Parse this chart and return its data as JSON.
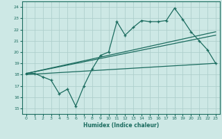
{
  "title": "",
  "xlabel": "Humidex (Indice chaleur)",
  "ylabel": "",
  "bg_color": "#cde8e5",
  "grid_color": "#aecfcc",
  "line_color": "#1a6b5e",
  "xlim": [
    -0.5,
    23.5
  ],
  "ylim": [
    14.5,
    24.5
  ],
  "xticks": [
    0,
    1,
    2,
    3,
    4,
    5,
    6,
    7,
    8,
    9,
    10,
    11,
    12,
    13,
    14,
    15,
    16,
    17,
    18,
    19,
    20,
    21,
    22,
    23
  ],
  "yticks": [
    15,
    16,
    17,
    18,
    19,
    20,
    21,
    22,
    23,
    24
  ],
  "main_x": [
    0,
    1,
    2,
    3,
    4,
    5,
    6,
    7,
    8,
    9,
    10,
    11,
    12,
    13,
    14,
    15,
    16,
    17,
    18,
    19,
    20,
    21,
    22,
    23
  ],
  "main_y": [
    18.1,
    18.1,
    17.8,
    17.5,
    16.3,
    16.7,
    15.2,
    17.0,
    18.5,
    19.7,
    20.0,
    22.7,
    21.5,
    22.2,
    22.8,
    22.7,
    22.7,
    22.8,
    23.9,
    22.9,
    21.8,
    21.0,
    20.2,
    19.0
  ],
  "line1_x": [
    0,
    23
  ],
  "line1_y": [
    18.1,
    21.8
  ],
  "line2_x": [
    0,
    23
  ],
  "line2_y": [
    18.1,
    21.5
  ],
  "line3_x": [
    0,
    23
  ],
  "line3_y": [
    18.0,
    19.0
  ]
}
